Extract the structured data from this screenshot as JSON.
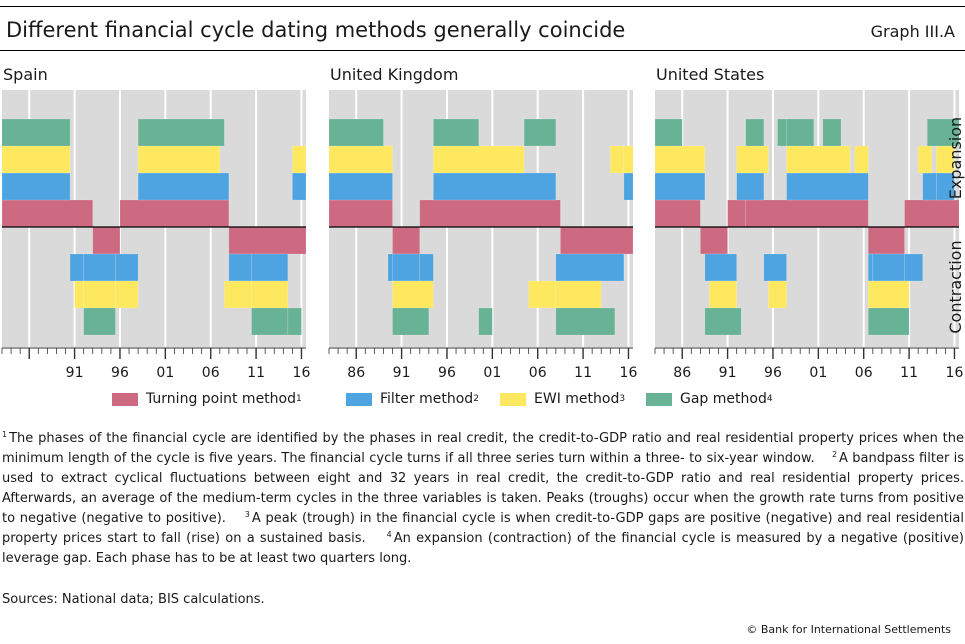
{
  "header": {
    "title": "Different financial cycle dating methods generally coincide",
    "graph_id": "Graph III.A"
  },
  "chart_data": {
    "type": "bar",
    "description_axis": {
      "expansion": "Expansion",
      "contraction": "Contraction"
    },
    "x_ticks": [
      "86",
      "91",
      "96",
      "01",
      "06",
      "11",
      "16"
    ],
    "x_start": 1983,
    "x_end": 2016.5,
    "methods": [
      {
        "key": "turning",
        "label": "Turning point method",
        "sup": "1",
        "color": "#cd6981",
        "level": 1
      },
      {
        "key": "filter",
        "label": "Filter method",
        "sup": "2",
        "color": "#4ea4e1",
        "level": 2
      },
      {
        "key": "ewi",
        "label": "EWI method",
        "sup": "3",
        "color": "#fde860",
        "level": 3
      },
      {
        "key": "gap",
        "label": "Gap method",
        "sup": "4",
        "color": "#68b295",
        "level": 4
      }
    ],
    "panels": [
      {
        "name": "Spain",
        "first_tick": 1991,
        "turning": [
          [
            1983.0,
            1993.0,
            1
          ],
          [
            1993.0,
            1996.0,
            -1
          ],
          [
            1996.0,
            2008.0,
            1
          ],
          [
            2008.0,
            2016.5,
            -1
          ]
        ],
        "filter": [
          [
            1983.0,
            1990.5,
            1
          ],
          [
            1990.5,
            1992.0,
            -1
          ],
          [
            1992.0,
            1995.5,
            -1
          ],
          [
            1995.5,
            1998.0,
            -1
          ],
          [
            1998.0,
            2008.0,
            1
          ],
          [
            2008.0,
            2010.5,
            -1
          ],
          [
            2010.5,
            2014.5,
            -1
          ],
          [
            2015.0,
            2016.5,
            1
          ]
        ],
        "ewi": [
          [
            1983.0,
            1990.5,
            1
          ],
          [
            1991.0,
            1992.0,
            -1
          ],
          [
            1992.0,
            1995.5,
            -1
          ],
          [
            1995.5,
            1998.0,
            -1
          ],
          [
            1998.0,
            2007.0,
            1
          ],
          [
            2007.5,
            2010.5,
            -1
          ],
          [
            2010.5,
            2014.5,
            -1
          ],
          [
            2015.0,
            2016.5,
            1
          ]
        ],
        "gap": [
          [
            1983.0,
            1990.5,
            1
          ],
          [
            1992.0,
            1995.5,
            -1
          ],
          [
            1998.0,
            2007.5,
            1
          ],
          [
            2010.5,
            2014.5,
            -1
          ],
          [
            2014.5,
            2016.0,
            -1
          ]
        ]
      },
      {
        "name": "United Kingdom",
        "first_tick": 1986,
        "turning": [
          [
            1983.0,
            1990.0,
            1
          ],
          [
            1990.0,
            1993.0,
            -1
          ],
          [
            1993.0,
            2008.5,
            1
          ],
          [
            2008.5,
            2016.5,
            -1
          ]
        ],
        "filter": [
          [
            1983.0,
            1990.0,
            1
          ],
          [
            1989.5,
            1990.0,
            -1
          ],
          [
            1990.0,
            1993.0,
            -1
          ],
          [
            1993.0,
            1994.5,
            -1
          ],
          [
            1994.5,
            2008.0,
            1
          ],
          [
            2008.0,
            2015.5,
            -1
          ],
          [
            2015.5,
            2016.5,
            1
          ]
        ],
        "ewi": [
          [
            1983.0,
            1990.0,
            1
          ],
          [
            1990.0,
            1994.5,
            -1
          ],
          [
            1994.5,
            2004.5,
            1
          ],
          [
            2005.0,
            2008.0,
            -1
          ],
          [
            2008.0,
            2013.0,
            -1
          ],
          [
            2014.0,
            2015.5,
            1
          ],
          [
            2015.5,
            2016.5,
            1
          ]
        ],
        "gap": [
          [
            1983.0,
            1989.0,
            1
          ],
          [
            1990.0,
            1994.0,
            -1
          ],
          [
            1994.5,
            1999.5,
            1
          ],
          [
            1999.5,
            2001.0,
            -1
          ],
          [
            2004.5,
            2008.0,
            1
          ],
          [
            2008.0,
            2014.5,
            -1
          ]
        ]
      },
      {
        "name": "United States",
        "first_tick": 1986,
        "turning": [
          [
            1983.0,
            1988.0,
            1
          ],
          [
            1988.0,
            1991.0,
            -1
          ],
          [
            1991.0,
            1993.0,
            1
          ],
          [
            1993.0,
            2006.5,
            1
          ],
          [
            2006.5,
            2010.5,
            -1
          ],
          [
            2010.5,
            2016.5,
            1
          ]
        ],
        "filter": [
          [
            1983.0,
            1988.5,
            1
          ],
          [
            1988.5,
            1992.0,
            -1
          ],
          [
            1992.0,
            1995.0,
            1
          ],
          [
            1995.0,
            1997.5,
            -1
          ],
          [
            1997.5,
            2006.5,
            1
          ],
          [
            2006.5,
            2007.0,
            -1
          ],
          [
            2007.0,
            2010.5,
            -1
          ],
          [
            2010.5,
            2012.5,
            -1
          ],
          [
            2012.5,
            2014.0,
            1
          ],
          [
            2014.0,
            2016.0,
            1
          ]
        ],
        "ewi": [
          [
            1983.0,
            1988.5,
            1
          ],
          [
            1989.0,
            1992.0,
            -1
          ],
          [
            1992.0,
            1995.5,
            1
          ],
          [
            1995.5,
            1997.5,
            -1
          ],
          [
            1997.5,
            2004.5,
            1
          ],
          [
            2005.0,
            2006.5,
            1
          ],
          [
            2006.5,
            2011.0,
            -1
          ],
          [
            2012.0,
            2013.5,
            1
          ],
          [
            2014.0,
            2016.0,
            1
          ]
        ],
        "gap": [
          [
            1983.0,
            1986.0,
            1
          ],
          [
            1988.5,
            1992.5,
            -1
          ],
          [
            1993.0,
            1995.0,
            1
          ],
          [
            1996.5,
            1997.5,
            1
          ],
          [
            1997.5,
            2000.5,
            1
          ],
          [
            2001.5,
            2003.5,
            1
          ],
          [
            2006.5,
            2011.0,
            -1
          ],
          [
            2013.0,
            2016.5,
            1
          ]
        ]
      }
    ]
  },
  "footnotes": [
    {
      "sup": "1",
      "text": "The phases of the financial cycle are identified by the phases in real credit, the credit-to-GDP ratio and real residential property prices when the minimum length of the cycle is five years. The financial cycle turns if all three series turn within a three- to six-year window."
    },
    {
      "sup": "2",
      "text": "A bandpass filter is used to extract cyclical fluctuations between eight and 32 years in real credit, the credit-to-GDP ratio and real residential property prices. Afterwards, an average of the medium-term cycles in the three variables is taken. Peaks (troughs) occur when the growth rate turns from positive to negative (negative to positive)."
    },
    {
      "sup": "3",
      "text": "A peak (trough) in the financial cycle is when credit-to-GDP gaps are positive (negative) and real residential property prices start to fall (rise) on a sustained basis."
    },
    {
      "sup": "4",
      "text": "An expansion (contraction) of the financial cycle is measured by a negative (positive) leverage gap. Each phase has to be at least two quarters long."
    }
  ],
  "sources": "Sources: National data; BIS calculations.",
  "copyright": "© Bank for International Settlements"
}
